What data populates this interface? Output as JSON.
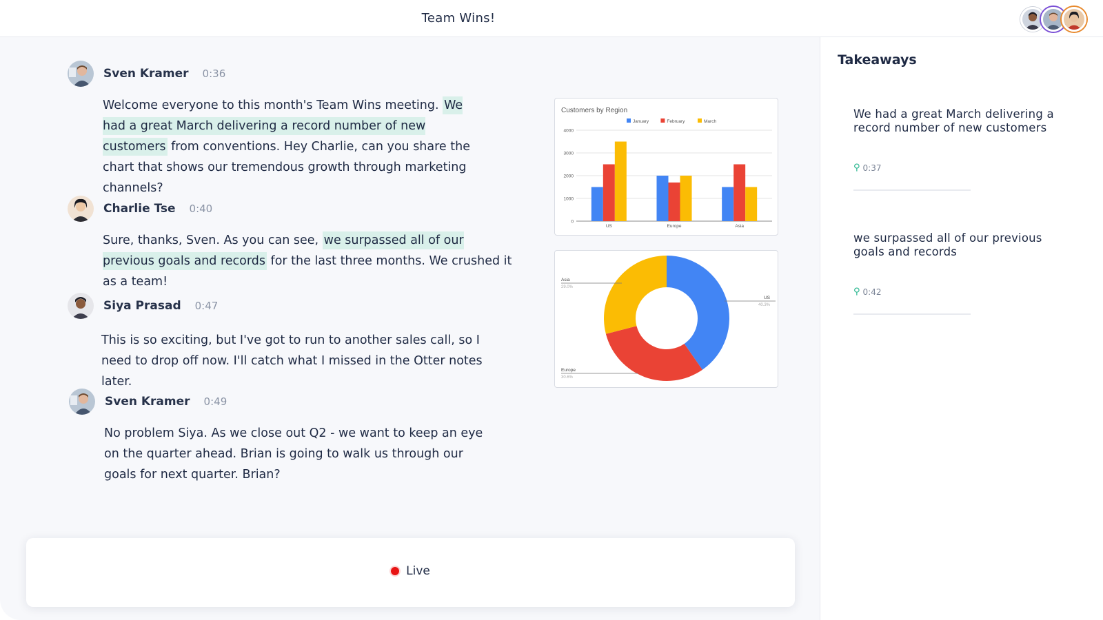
{
  "app": {
    "title": "Team Wins!"
  },
  "participants": [
    {
      "name": "Siya Prasad",
      "ring": "#9aa3b2"
    },
    {
      "name": "Sven Kramer",
      "ring": "#7a4fd6"
    },
    {
      "name": "Charlie Tse",
      "ring": "#e8892c"
    }
  ],
  "transcript": [
    {
      "speaker": "Sven Kramer",
      "time": "0:36",
      "pre": "Welcome everyone to this month's Team Wins meeting. ",
      "highlight": "We had a great March delivering a record number of new customers",
      "post": " from conventions. Hey Charlie, can you share the chart that shows our tremendous growth through marketing channels?"
    },
    {
      "speaker": "Charlie Tse",
      "time": "0:40",
      "pre": "Sure, thanks, Sven. As you can see, ",
      "highlight": "we surpassed all of our previous goals and records",
      "post": " for the last three months. We crushed it as a team!"
    },
    {
      "speaker": "Siya Prasad",
      "time": "0:47",
      "pre": "This is so exciting, but I've got to run to another sales call, so I need to drop off now. I'll catch what I missed in the Otter notes later.",
      "highlight": "",
      "post": ""
    },
    {
      "speaker": "Sven Kramer",
      "time": "0:49",
      "pre": "No problem Siya. As we close out Q2 - we want to keep an eye on the quarter ahead. Brian is going to walk us through our goals for next quarter. Brian?",
      "highlight": "",
      "post": ""
    }
  ],
  "status": {
    "live_label": "Live"
  },
  "takeaways": {
    "title": "Takeaways",
    "items": [
      {
        "text": "We had a great March delivering a record number of new customers",
        "time": "0:37"
      },
      {
        "text": "we surpassed all of our previous goals and records",
        "time": "0:42"
      }
    ]
  },
  "chart_data": [
    {
      "type": "bar",
      "title": "Customers by Region",
      "categories": [
        "US",
        "Europe",
        "Asia"
      ],
      "series": [
        {
          "name": "January",
          "color": "#4285f4",
          "values": [
            1500,
            2000,
            1500
          ]
        },
        {
          "name": "February",
          "color": "#ea4335",
          "values": [
            2500,
            1700,
            2500
          ]
        },
        {
          "name": "March",
          "color": "#fbbc04",
          "values": [
            3500,
            2000,
            1500
          ]
        }
      ],
      "ylim": [
        0,
        4000
      ],
      "yticks": [
        0,
        1000,
        2000,
        3000,
        4000
      ],
      "legend": "top",
      "grid": true
    },
    {
      "type": "pie",
      "donut": true,
      "slices": [
        {
          "label": "US",
          "percent_label": "40.3%",
          "value": 40.3,
          "color": "#4285f4"
        },
        {
          "label": "Europe",
          "percent_label": "30.6%",
          "value": 30.6,
          "color": "#ea4335"
        },
        {
          "label": "Asia",
          "percent_label": "29.0%",
          "value": 29.0,
          "color": "#fbbc04"
        }
      ]
    }
  ]
}
